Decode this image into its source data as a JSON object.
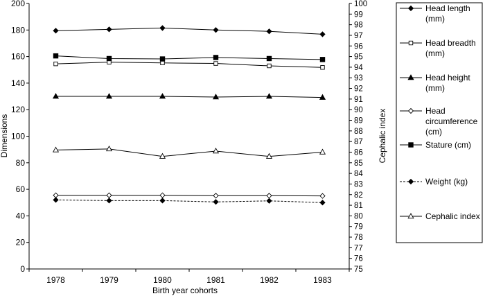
{
  "chart_data": {
    "type": "line",
    "xlabel": "Birth year cohorts",
    "ylabel": "Dimensions",
    "y2label": "Cephalic index",
    "categories": [
      "1978",
      "1979",
      "1980",
      "1981",
      "1982",
      "1983"
    ],
    "ylim": [
      0,
      200
    ],
    "yticks": [
      0,
      20,
      40,
      60,
      80,
      100,
      120,
      140,
      160,
      180,
      200
    ],
    "y2lim": [
      75,
      100
    ],
    "y2ticks": [
      75,
      76,
      77,
      78,
      79,
      80,
      81,
      82,
      83,
      84,
      85,
      86,
      87,
      88,
      89,
      90,
      91,
      92,
      93,
      94,
      95,
      96,
      97,
      98,
      99,
      100
    ],
    "grid": false,
    "legend_position": "right",
    "series": [
      {
        "name": "Head length (mm)",
        "legend_lines": [
          "Head length",
          "(mm)"
        ],
        "marker": "diamond-filled",
        "dash": "solid",
        "axis": "left",
        "values": [
          179.5,
          180.5,
          181.5,
          180,
          179,
          176.8
        ]
      },
      {
        "name": "Head breadth (mm)",
        "legend_lines": [
          "Head breadth",
          "(mm)"
        ],
        "marker": "square-open",
        "dash": "solid",
        "axis": "left",
        "values": [
          154.5,
          155.8,
          155.2,
          154.8,
          153,
          151.8
        ]
      },
      {
        "name": "Head height (mm)",
        "legend_lines": [
          "Head height",
          "(mm)"
        ],
        "marker": "triangle-filled",
        "dash": "solid",
        "axis": "left",
        "values": [
          130,
          130,
          130,
          129.5,
          130,
          129.2
        ]
      },
      {
        "name": "Head circumference (cm)",
        "legend_lines": [
          "Head",
          "circumference",
          "(cm)"
        ],
        "marker": "diamond-open",
        "dash": "solid",
        "axis": "left",
        "values": [
          55.5,
          55.5,
          55.5,
          55.2,
          55.2,
          55
        ]
      },
      {
        "name": "Stature (cm)",
        "legend_lines": [
          "Stature (cm)"
        ],
        "marker": "square-filled",
        "dash": "solid",
        "axis": "left",
        "values": [
          160.5,
          158.5,
          158.2,
          159.3,
          158.5,
          157.8
        ]
      },
      {
        "name": "Weight (kg)",
        "legend_lines": [
          "Weight (kg)"
        ],
        "marker": "diamond-filled",
        "dash": "dashed",
        "axis": "left",
        "values": [
          52,
          51.5,
          51.5,
          50.5,
          51.3,
          50
        ]
      },
      {
        "name": "Cephalic index",
        "legend_lines": [
          "Cephalic index"
        ],
        "marker": "triangle-open",
        "dash": "solid",
        "axis": "right",
        "values": [
          86.2,
          86.3,
          85.6,
          86.1,
          85.6,
          86.0
        ]
      }
    ]
  }
}
